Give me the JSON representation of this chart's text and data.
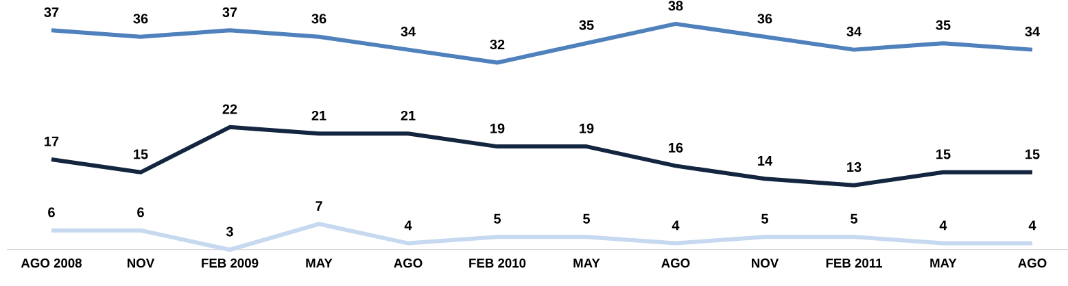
{
  "chart_data": {
    "type": "line",
    "categories": [
      "AGO 2008",
      "NOV",
      "FEB 2009",
      "MAY",
      "AGO",
      "FEB 2010",
      "MAY",
      "AGO",
      "NOV",
      "FEB 2011",
      "MAY",
      "AGO"
    ],
    "series": [
      {
        "color": "#4f81bd",
        "values": [
          37,
          36,
          37,
          36,
          34,
          32,
          35,
          38,
          36,
          34,
          35,
          34
        ]
      },
      {
        "color": "#14263f",
        "values": [
          17,
          15,
          22,
          21,
          21,
          19,
          19,
          16,
          14,
          13,
          15,
          15
        ]
      },
      {
        "color": "#c6d9f0",
        "values": [
          6,
          6,
          3,
          7,
          4,
          5,
          5,
          4,
          5,
          5,
          4,
          4
        ]
      }
    ],
    "data_labels": true,
    "marker": "none",
    "line_style": "solid",
    "grid": false
  }
}
